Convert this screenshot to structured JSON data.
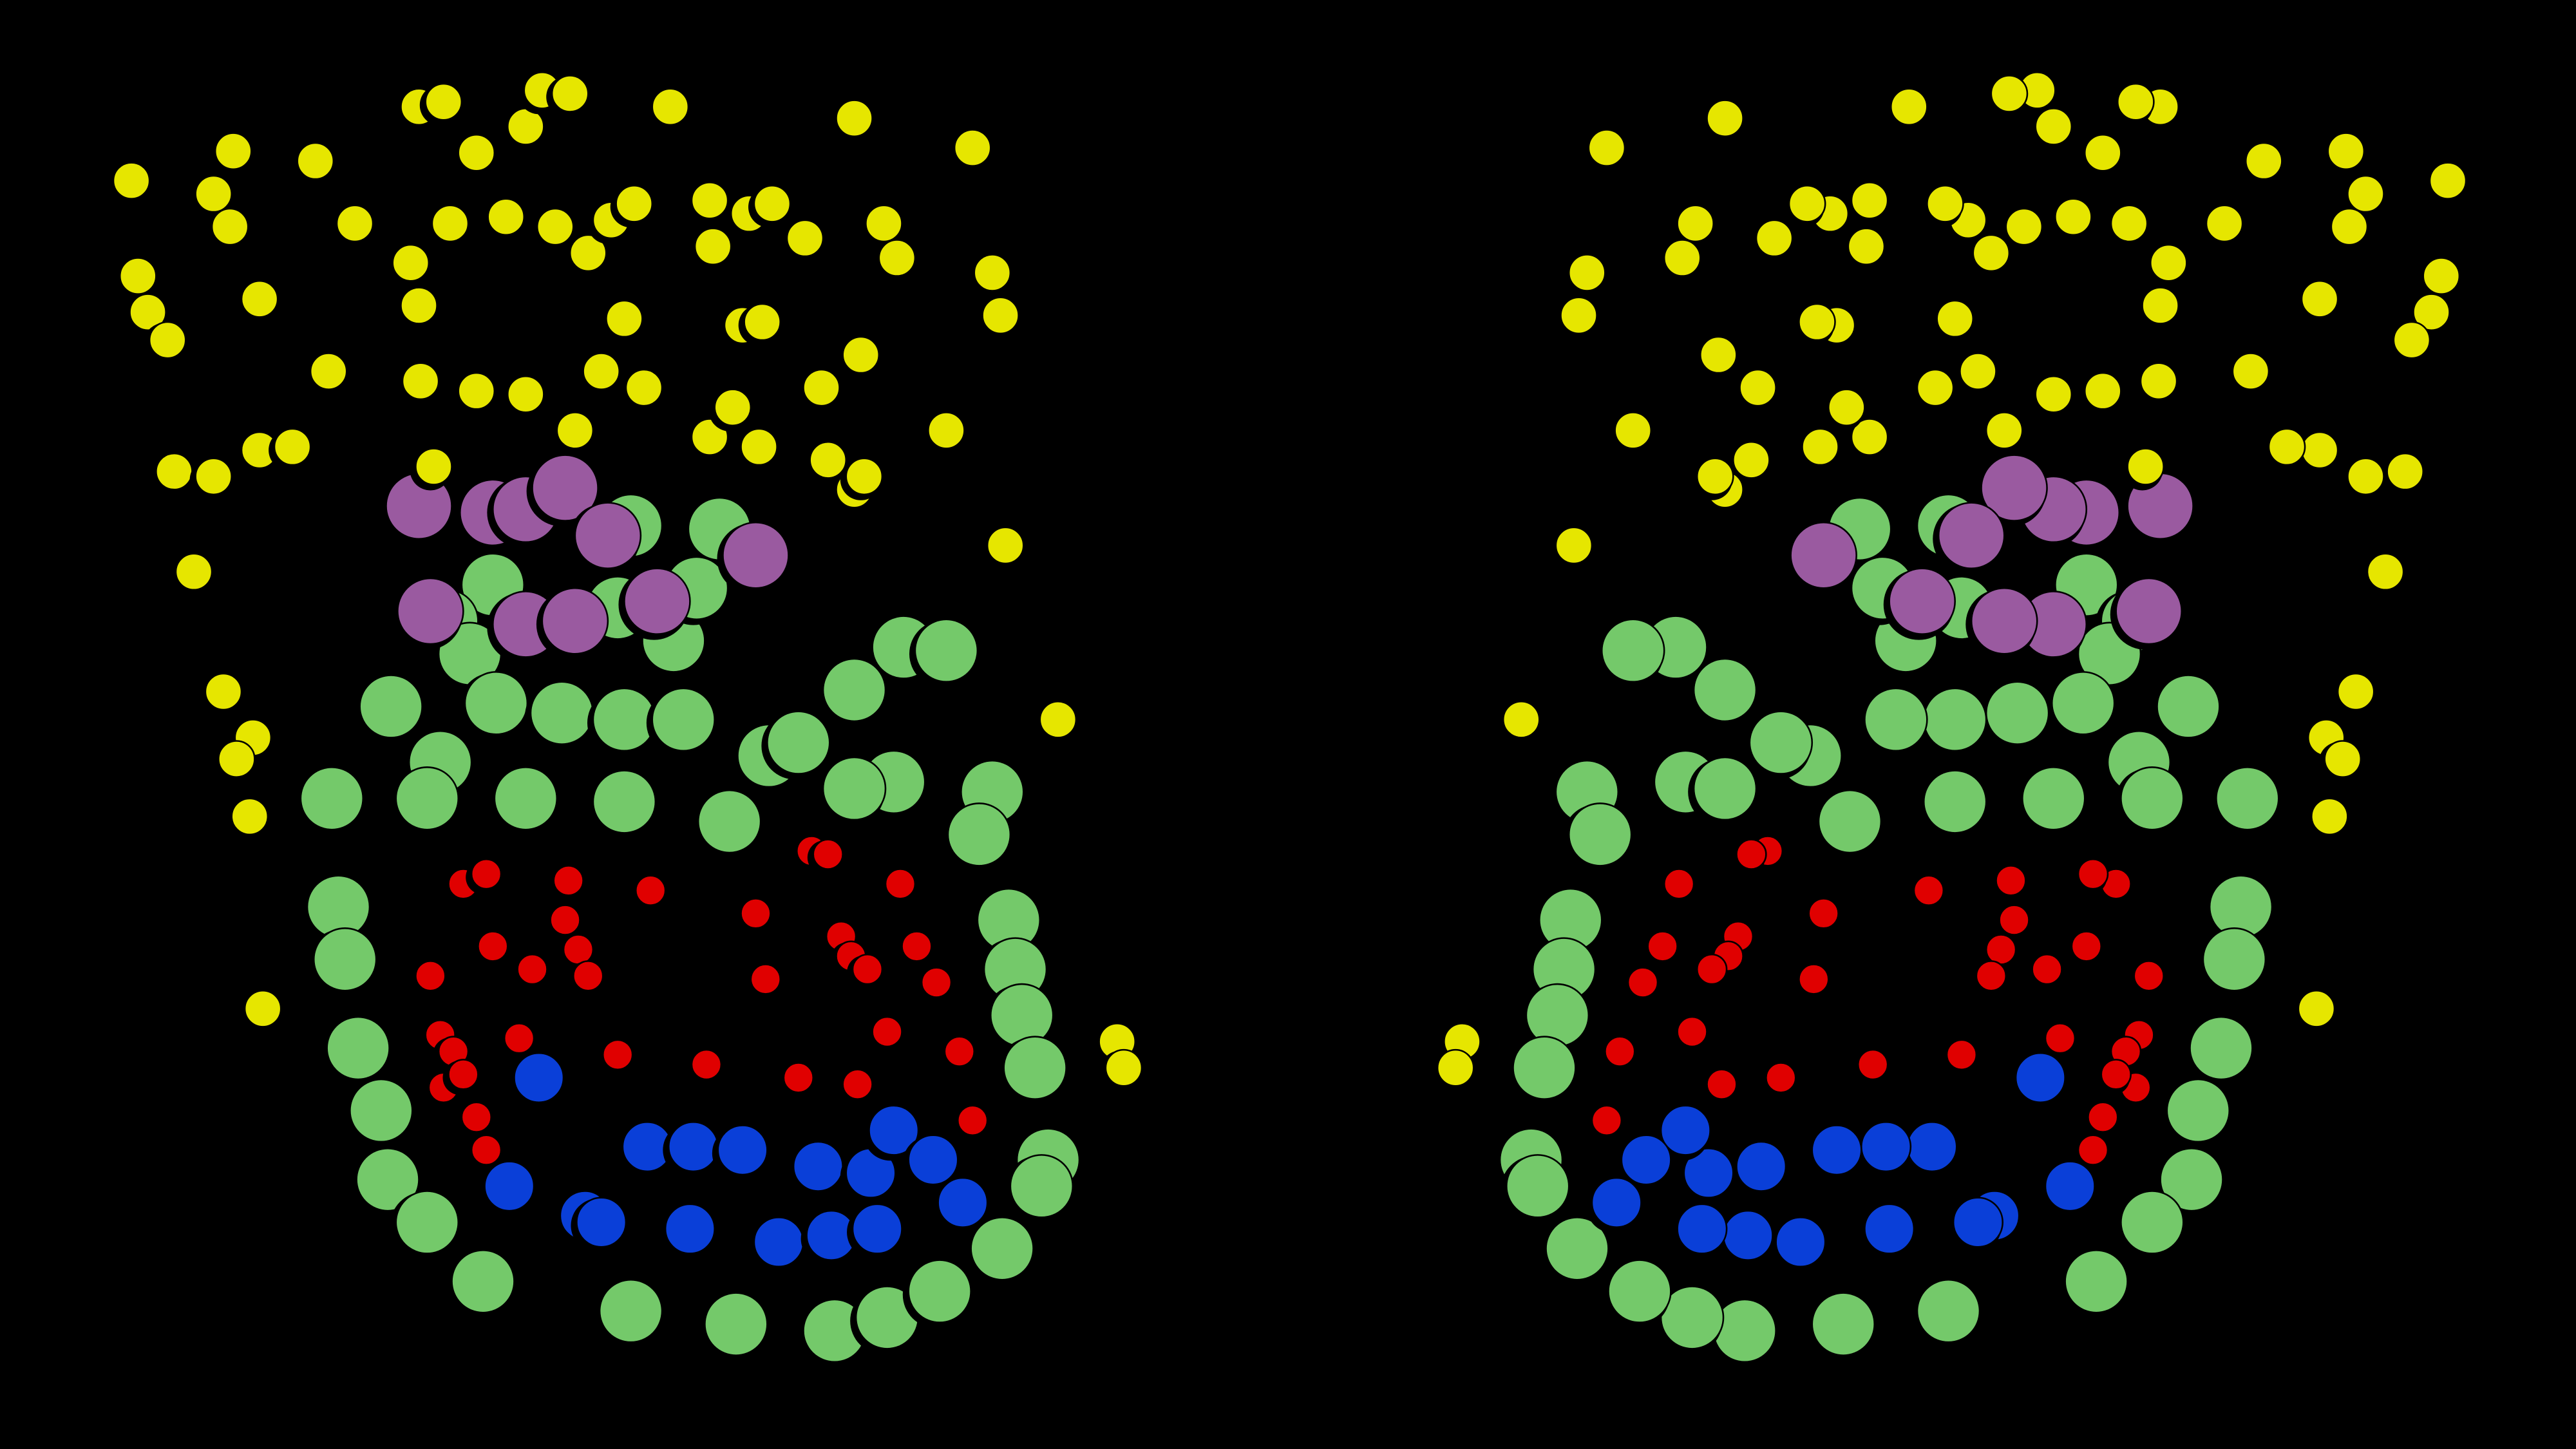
{
  "background": "#000000",
  "colors": {
    "yellow": "#e6e600",
    "green": "#74c96a",
    "purple": "#9a5aa0",
    "red": "#e00000",
    "blue": "#0a3fd8",
    "outline": "#000000"
  },
  "groups": [
    "yellow",
    "purple",
    "green",
    "red",
    "blue"
  ]
}
